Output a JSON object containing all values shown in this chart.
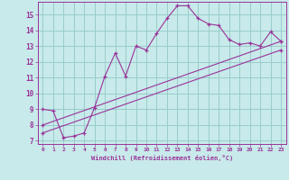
{
  "title": "",
  "xlabel": "Windchill (Refroidissement éolien,°C)",
  "xlim": [
    -0.5,
    23.5
  ],
  "ylim": [
    6.8,
    15.8
  ],
  "yticks": [
    7,
    8,
    9,
    10,
    11,
    12,
    13,
    14,
    15
  ],
  "xticks": [
    0,
    1,
    2,
    3,
    4,
    5,
    6,
    7,
    8,
    9,
    10,
    11,
    12,
    13,
    14,
    15,
    16,
    17,
    18,
    19,
    20,
    21,
    22,
    23
  ],
  "bg_color": "#c8eaea",
  "line_color": "#993399",
  "grid_color": "#99cccc",
  "series1_x": [
    0,
    1,
    2,
    3,
    4,
    5,
    6,
    7,
    8,
    9,
    10,
    11,
    12,
    13,
    14,
    15,
    16,
    17,
    18,
    19,
    20,
    21,
    22,
    23
  ],
  "series1_y": [
    9.0,
    8.9,
    7.2,
    7.3,
    7.5,
    9.1,
    11.1,
    12.55,
    11.1,
    13.0,
    12.75,
    13.8,
    14.75,
    15.55,
    15.55,
    14.75,
    14.4,
    14.3,
    13.4,
    13.1,
    13.2,
    13.0,
    13.9,
    13.3
  ],
  "series2_x": [
    0,
    23
  ],
  "series2_y": [
    8.0,
    13.3
  ],
  "series3_x": [
    0,
    23
  ],
  "series3_y": [
    7.5,
    12.75
  ],
  "marker": "+"
}
